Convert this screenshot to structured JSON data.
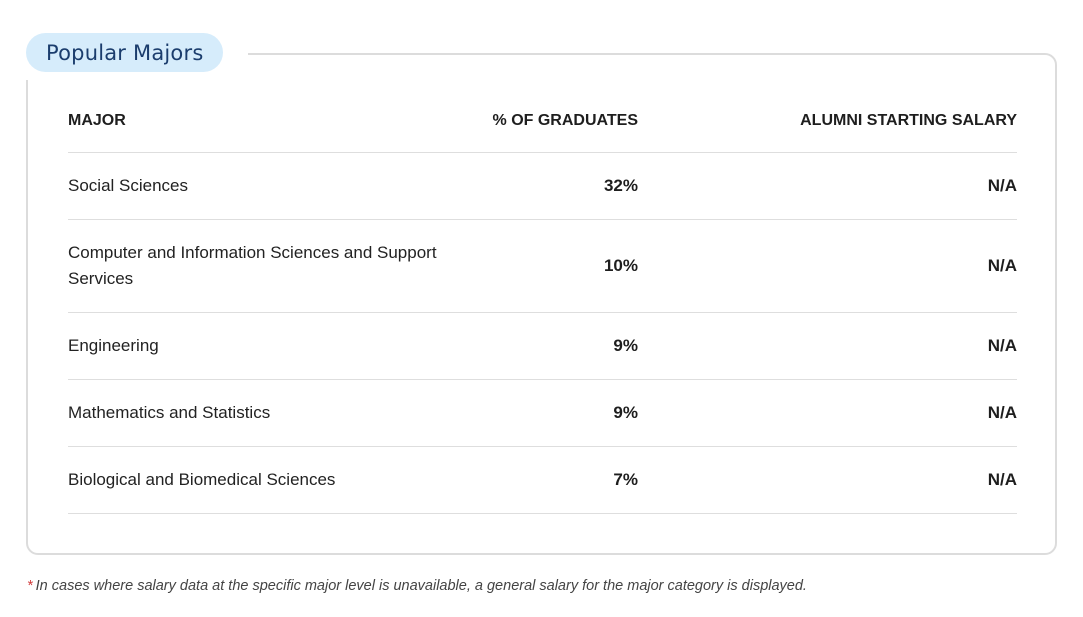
{
  "section": {
    "title": "Popular Majors"
  },
  "table": {
    "headers": {
      "major": "MAJOR",
      "percent": "% OF GRADUATES",
      "salary": "ALUMNI STARTING SALARY"
    },
    "rows": [
      {
        "major": "Social Sciences",
        "percent": "32%",
        "salary": "N/A"
      },
      {
        "major": "Computer and Information Sciences and Support Services",
        "percent": "10%",
        "salary": "N/A"
      },
      {
        "major": "Engineering",
        "percent": "9%",
        "salary": "N/A"
      },
      {
        "major": "Mathematics and Statistics",
        "percent": "9%",
        "salary": "N/A"
      },
      {
        "major": "Biological and Biomedical Sciences",
        "percent": "7%",
        "salary": "N/A"
      }
    ]
  },
  "footnote": {
    "marker": "*",
    "text": "In cases where salary data at the specific major level is unavailable, a general salary for the major category is displayed."
  },
  "colors": {
    "pill_background": "#d6ecfb",
    "title_text": "#1b3d6d",
    "card_border": "#dcdcdc",
    "asterisk": "#d13a3a"
  }
}
